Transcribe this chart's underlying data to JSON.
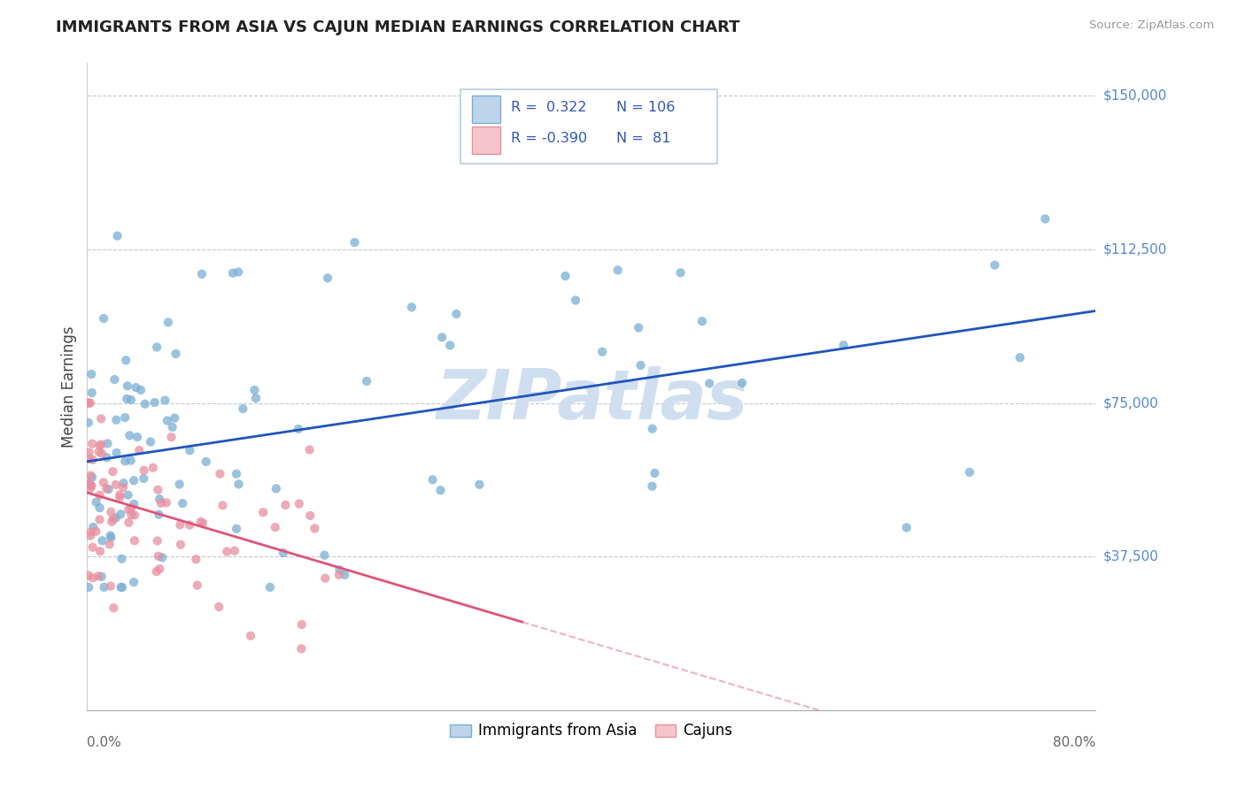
{
  "title": "IMMIGRANTS FROM ASIA VS CAJUN MEDIAN EARNINGS CORRELATION CHART",
  "source": "Source: ZipAtlas.com",
  "ylabel": "Median Earnings",
  "yticks": [
    0,
    37500,
    75000,
    112500,
    150000
  ],
  "ytick_labels": [
    "",
    "$37,500",
    "$75,000",
    "$112,500",
    "$150,000"
  ],
  "xmin": 0.0,
  "xmax": 0.8,
  "ymin": 5000,
  "ymax": 158000,
  "blue_color": "#7aafd4",
  "blue_fill": "#bed4ea",
  "pink_color": "#e88fa0",
  "pink_fill": "#f5c5cb",
  "trend_blue": "#2255bb",
  "trend_pink": "#dd5577",
  "watermark": "ZIPatlas",
  "watermark_color": "#d0dff0",
  "legend_label_1": "Immigrants from Asia",
  "legend_label_2": "Cajuns",
  "r1": "0.322",
  "n1": "106",
  "r2": "-0.390",
  "n2": "81"
}
